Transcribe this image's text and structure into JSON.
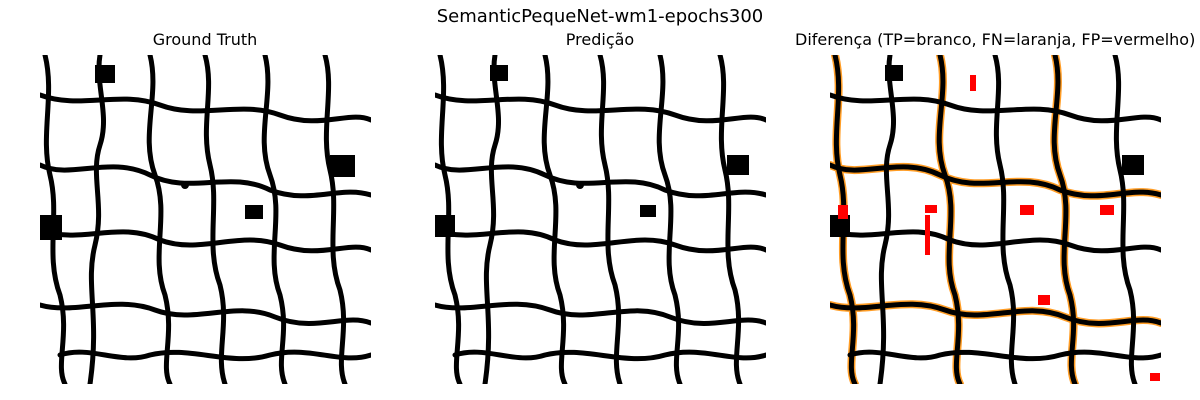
{
  "figure": {
    "suptitle": "SemanticPequeNet-wm1-epochs300"
  },
  "panels": [
    {
      "title": "Ground Truth"
    },
    {
      "title": "Predição"
    },
    {
      "title": "Diferença (TP=branco, FN=laranja, FP=vermelho)"
    }
  ],
  "colors": {
    "background": "#ffffff",
    "foreground": "#000000",
    "false_negative": "#ff8c00",
    "false_positive": "#ff0000"
  }
}
